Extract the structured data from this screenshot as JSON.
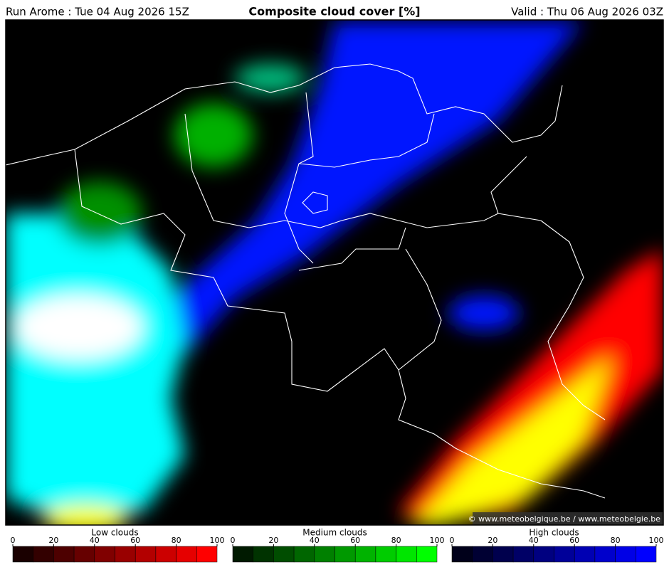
{
  "header": {
    "run": "Run Arome : Tue 04 Aug 2026 15Z",
    "title": "Composite cloud cover [%]",
    "valid": "Valid : Thu 06 Aug 2026 03Z"
  },
  "map": {
    "credit": "© www.meteobelgique.be / www.meteobelgie.be"
  },
  "legends": [
    {
      "title": "Low clouds",
      "ticks": [
        0,
        20,
        40,
        60,
        80,
        100
      ],
      "colors": [
        "#1a0000",
        "#330000",
        "#4d0000",
        "#660000",
        "#800000",
        "#990000",
        "#b30000",
        "#cc0000",
        "#e60000",
        "#ff0000"
      ]
    },
    {
      "title": "Medium clouds",
      "ticks": [
        0,
        20,
        40,
        60,
        80,
        100
      ],
      "colors": [
        "#001a00",
        "#003300",
        "#004d00",
        "#006600",
        "#008000",
        "#009900",
        "#00b300",
        "#00cc00",
        "#00e600",
        "#00ff00"
      ]
    },
    {
      "title": "High clouds",
      "ticks": [
        0,
        20,
        40,
        60,
        80,
        100
      ],
      "colors": [
        "#00001a",
        "#000033",
        "#00004d",
        "#000066",
        "#000080",
        "#000099",
        "#0000b3",
        "#0000cc",
        "#0000e6",
        "#0000ff"
      ]
    }
  ]
}
